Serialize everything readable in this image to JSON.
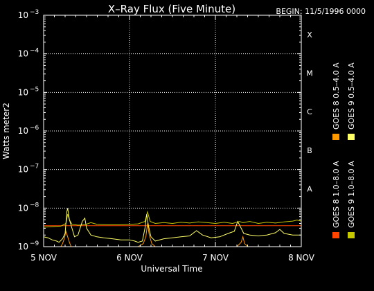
{
  "chart_data": {
    "type": "line",
    "title": "X–Ray Flux (Five Minute)",
    "begin_label": "BEGIN: 11/5/1996 0000",
    "ylabel": "Watts meter2",
    "xlabel": "Universal Time",
    "y_scale": "log",
    "ylim": [
      1e-09,
      0.001
    ],
    "y_ticks": [
      {
        "base": "10",
        "exp": "−3",
        "value": -3
      },
      {
        "base": "10",
        "exp": "−4",
        "value": -4
      },
      {
        "base": "10",
        "exp": "−5",
        "value": -5
      },
      {
        "base": "10",
        "exp": "−6",
        "value": -6
      },
      {
        "base": "10",
        "exp": "−7",
        "value": -7
      },
      {
        "base": "10",
        "exp": "−8",
        "value": -8
      },
      {
        "base": "10",
        "exp": "−9",
        "value": -9
      }
    ],
    "x_ticks": [
      {
        "label": "5 NOV",
        "day": 0
      },
      {
        "label": "6 NOV",
        "day": 1
      },
      {
        "label": "7 NOV",
        "day": 2
      },
      {
        "label": "8 NOV",
        "day": 3
      }
    ],
    "xlim": [
      0,
      3
    ],
    "flare_classes": [
      {
        "label": "X",
        "value": -4
      },
      {
        "label": "M",
        "value": -5
      },
      {
        "label": "C",
        "value": -6
      },
      {
        "label": "B",
        "value": -7
      },
      {
        "label": "A",
        "value": -8
      }
    ],
    "grid": true,
    "series": [
      {
        "name": "GOES 8 1.0–8.0 A",
        "color": "#ff4500",
        "line_value": 3.5e-09,
        "points": [
          [
            0.0,
            3.5e-09
          ],
          [
            3.0,
            3.5e-09
          ]
        ]
      },
      {
        "name": "GOES 9 1.0–8.0 A",
        "color": "#c8c800",
        "points": [
          [
            0.0,
            3.2e-09
          ],
          [
            0.1,
            3.3e-09
          ],
          [
            0.2,
            3.4e-09
          ],
          [
            0.26,
            4e-09
          ],
          [
            0.28,
            7e-09
          ],
          [
            0.3,
            5e-09
          ],
          [
            0.33,
            3.8e-09
          ],
          [
            0.4,
            3.6e-09
          ],
          [
            0.48,
            3.7e-09
          ],
          [
            0.55,
            4.2e-09
          ],
          [
            0.62,
            3.8e-09
          ],
          [
            0.75,
            3.7e-09
          ],
          [
            0.9,
            3.7e-09
          ],
          [
            1.0,
            3.8e-09
          ],
          [
            1.1,
            3.9e-09
          ],
          [
            1.18,
            4.5e-09
          ],
          [
            1.21,
            8e-09
          ],
          [
            1.24,
            4.5e-09
          ],
          [
            1.3,
            4e-09
          ],
          [
            1.4,
            4.2e-09
          ],
          [
            1.5,
            4e-09
          ],
          [
            1.6,
            4.3e-09
          ],
          [
            1.7,
            4.1e-09
          ],
          [
            1.8,
            4.4e-09
          ],
          [
            1.9,
            4.2e-09
          ],
          [
            2.0,
            4e-09
          ],
          [
            2.1,
            4.3e-09
          ],
          [
            2.2,
            4e-09
          ],
          [
            2.28,
            4.5e-09
          ],
          [
            2.32,
            4.2e-09
          ],
          [
            2.4,
            4.5e-09
          ],
          [
            2.5,
            4e-09
          ],
          [
            2.6,
            4.3e-09
          ],
          [
            2.7,
            4.1e-09
          ],
          [
            2.8,
            4.4e-09
          ],
          [
            2.9,
            4.6e-09
          ],
          [
            2.95,
            4.9e-09
          ],
          [
            3.0,
            4.6e-09
          ]
        ]
      },
      {
        "name": "GOES 8 0.5–4.0 A",
        "color": "#ff9900",
        "points": [
          [
            0.0,
            1e-09
          ],
          [
            0.2,
            1e-09
          ],
          [
            0.22,
            1.2e-09
          ],
          [
            0.24,
            1.6e-09
          ],
          [
            0.26,
            2.5e-09
          ],
          [
            0.28,
            1.8e-09
          ],
          [
            0.3,
            1.3e-09
          ],
          [
            0.32,
            1e-09
          ],
          [
            0.4,
            1e-09
          ],
          [
            0.45,
            1e-09
          ],
          [
            1.1,
            1e-09
          ],
          [
            1.16,
            1.2e-09
          ],
          [
            1.19,
            1.8e-09
          ],
          [
            1.21,
            4e-09
          ],
          [
            1.23,
            2e-09
          ],
          [
            1.26,
            1.2e-09
          ],
          [
            1.3,
            1e-09
          ],
          [
            2.25,
            1e-09
          ],
          [
            2.3,
            1.3e-09
          ],
          [
            2.32,
            1.8e-09
          ],
          [
            2.34,
            1.2e-09
          ],
          [
            2.38,
            1e-09
          ],
          [
            3.0,
            1e-09
          ]
        ]
      },
      {
        "name": "GOES 9 0.5–4.0 A",
        "color": "#ffff66",
        "points": [
          [
            0.0,
            1.8e-09
          ],
          [
            0.05,
            1.7e-09
          ],
          [
            0.1,
            1.5e-09
          ],
          [
            0.15,
            1.4e-09
          ],
          [
            0.18,
            1.3e-09
          ],
          [
            0.22,
            1.6e-09
          ],
          [
            0.25,
            2.2e-09
          ],
          [
            0.27,
            8e-09
          ],
          [
            0.28,
            1e-08
          ],
          [
            0.3,
            5e-09
          ],
          [
            0.33,
            3e-09
          ],
          [
            0.36,
            1.8e-09
          ],
          [
            0.4,
            2e-09
          ],
          [
            0.45,
            4.5e-09
          ],
          [
            0.48,
            5.5e-09
          ],
          [
            0.5,
            3e-09
          ],
          [
            0.55,
            2e-09
          ],
          [
            0.62,
            1.8e-09
          ],
          [
            0.7,
            1.7e-09
          ],
          [
            0.8,
            1.6e-09
          ],
          [
            0.9,
            1.5e-09
          ],
          [
            1.0,
            1.5e-09
          ],
          [
            1.06,
            1.4e-09
          ],
          [
            1.1,
            1.3e-09
          ],
          [
            1.15,
            1.4e-09
          ],
          [
            1.18,
            3e-09
          ],
          [
            1.2,
            7e-09
          ],
          [
            1.22,
            3.5e-09
          ],
          [
            1.25,
            1.8e-09
          ],
          [
            1.3,
            1.4e-09
          ],
          [
            1.4,
            1.6e-09
          ],
          [
            1.5,
            1.7e-09
          ],
          [
            1.6,
            1.8e-09
          ],
          [
            1.7,
            1.9e-09
          ],
          [
            1.78,
            2.6e-09
          ],
          [
            1.85,
            2e-09
          ],
          [
            1.95,
            1.7e-09
          ],
          [
            2.05,
            1.8e-09
          ],
          [
            2.15,
            2.2e-09
          ],
          [
            2.22,
            2.5e-09
          ],
          [
            2.26,
            4.5e-09
          ],
          [
            2.3,
            3e-09
          ],
          [
            2.33,
            2.2e-09
          ],
          [
            2.4,
            2e-09
          ],
          [
            2.5,
            1.9e-09
          ],
          [
            2.6,
            2e-09
          ],
          [
            2.7,
            2.3e-09
          ],
          [
            2.75,
            2.8e-09
          ],
          [
            2.8,
            2.2e-09
          ],
          [
            2.9,
            2e-09
          ],
          [
            3.0,
            2e-09
          ]
        ]
      }
    ]
  }
}
